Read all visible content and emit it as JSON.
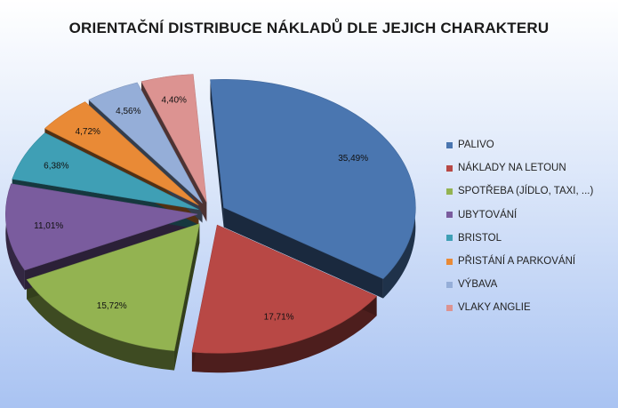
{
  "chart_data": {
    "type": "pie",
    "title": "ORIENTAČNÍ DISTRIBUCE NÁKLADŮ DLE JEJICH CHARAKTERU",
    "legend_position": "right",
    "exploded": true,
    "three_d": true,
    "slices": [
      {
        "name": "PALIVO",
        "value": 35.49,
        "label": "35,49%",
        "color": "#4a76b0"
      },
      {
        "name": "NÁKLADY NA LETOUN",
        "value": 17.71,
        "label": "17,71%",
        "color": "#b84845"
      },
      {
        "name": "SPOTŘEBA (JÍDLO, TAXI, ...)",
        "value": 15.72,
        "label": "15,72%",
        "color": "#93b351"
      },
      {
        "name": "UBYTOVÁNÍ",
        "value": 11.01,
        "label": "11,01%",
        "color": "#7a5c9e"
      },
      {
        "name": "BRISTOL",
        "value": 6.38,
        "label": "6,38%",
        "color": "#3f9fb5"
      },
      {
        "name": "PŘISTÁNÍ A PARKOVÁNÍ",
        "value": 4.72,
        "label": "4,72%",
        "color": "#e98a36"
      },
      {
        "name": "VÝBAVA",
        "value": 4.56,
        "label": "4,56%",
        "color": "#95aed8"
      },
      {
        "name": "VLAKY ANGLIE",
        "value": 4.4,
        "label": "4,40%",
        "color": "#dc9391"
      }
    ]
  }
}
